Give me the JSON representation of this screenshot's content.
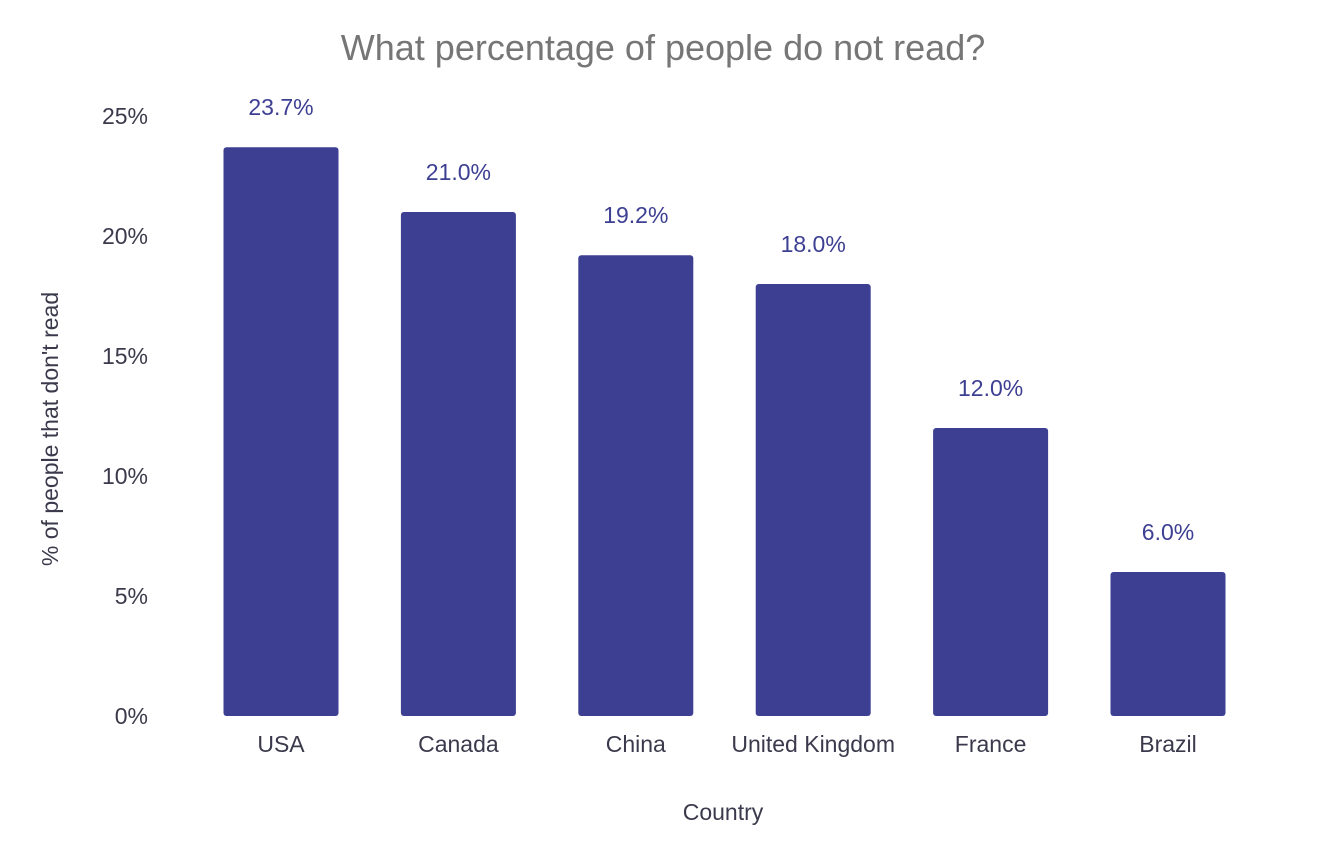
{
  "chart_data": {
    "type": "bar",
    "title": "What percentage of people do not read?",
    "xlabel": "Country",
    "ylabel": "% of people that don't read",
    "categories": [
      "USA",
      "Canada",
      "China",
      "United Kingdom",
      "France",
      "Brazil"
    ],
    "values": [
      23.7,
      21.0,
      19.2,
      18.0,
      12.0,
      6.0
    ],
    "data_labels": [
      "23.7%",
      "21.0%",
      "19.2%",
      "18.0%",
      "12.0%",
      "6.0%"
    ],
    "ylim": [
      0,
      25
    ],
    "yticks": [
      0,
      5,
      10,
      15,
      20,
      25
    ],
    "ytick_labels": [
      "0%",
      "5%",
      "10%",
      "15%",
      "20%",
      "25%"
    ],
    "grid": false,
    "legend": "none",
    "bar_color": "#3d3f93",
    "label_color": "#3d3f93"
  }
}
